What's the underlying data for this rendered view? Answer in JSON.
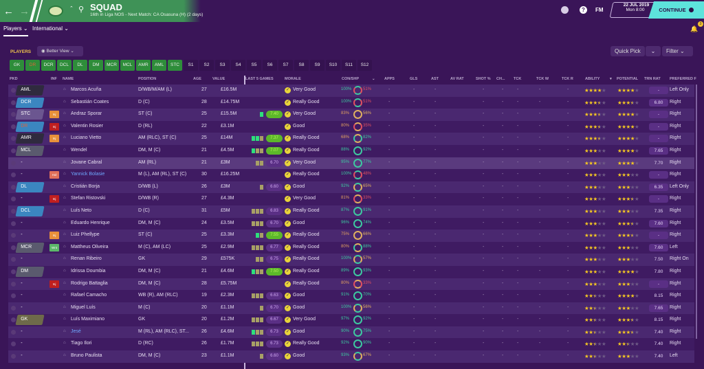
{
  "header": {
    "title": "SQUAD",
    "subtitle": "16th in Liga NOS - Next Match: CA Osasuna (H) (2 days)",
    "date": "22 JUL 2019",
    "time": "Mon 8:00",
    "continue": "CONTINUE",
    "fm": "FM",
    "help": "?",
    "notifications": "3"
  },
  "subnav": {
    "players": "Players ⌄",
    "international": "International ⌄"
  },
  "toolbar": {
    "players_label": "PLAYERS",
    "view": "Better View",
    "quick_pick": "Quick Pick",
    "filter": "Filter"
  },
  "position_buttons": [
    {
      "label": "GK",
      "on": true
    },
    {
      "label": "DR",
      "on": true,
      "alert": true
    },
    {
      "label": "DCR",
      "on": true
    },
    {
      "label": "DCL",
      "on": true
    },
    {
      "label": "DL",
      "on": true
    },
    {
      "label": "DM",
      "on": true
    },
    {
      "label": "MCR",
      "on": true
    },
    {
      "label": "MCL",
      "on": true
    },
    {
      "label": "AMR",
      "on": true
    },
    {
      "label": "AML",
      "on": true
    },
    {
      "label": "STC",
      "on": true
    },
    {
      "label": "S1"
    },
    {
      "label": "S2"
    },
    {
      "label": "S3"
    },
    {
      "label": "S4"
    },
    {
      "label": "S5"
    },
    {
      "label": "S6"
    },
    {
      "label": "S7"
    },
    {
      "label": "S8"
    },
    {
      "label": "S9"
    },
    {
      "label": "S10"
    },
    {
      "label": "S11"
    },
    {
      "label": "S12"
    }
  ],
  "columns": {
    "pkd": "PKD",
    "inf": "INF",
    "name": "NAME",
    "position": "POSITION",
    "age": "AGE",
    "value": "VALUE",
    "last5": "LAST 5 GAMES",
    "morale": "MORALE",
    "conshp": "CON/SHP",
    "apps": "APPS",
    "gls": "GLS",
    "ast": "AST",
    "avrat": "AV RAT",
    "shot": "SHOT %",
    "ch": "CH...",
    "tck": "TCK",
    "tckw": "TCK W",
    "tckr": "TCK R",
    "ability": "ABILITY",
    "potential": "POTENTIAL",
    "trn": "TRN RAT",
    "preferred": "PREFERRED F"
  },
  "colors": {
    "green": "#3f9257",
    "purple_bg": "#3a1558",
    "teal": "#5de3db",
    "star": "#f3c623"
  },
  "players": [
    {
      "pkd": "AML",
      "pkdc": "dark",
      "inf": "",
      "name": "Marcos Acuña",
      "pos": "D/WB/M/AM (L)",
      "age": "27",
      "value": "£16.5M",
      "form": [],
      "rating": "",
      "morale": "Very Good",
      "con": "100%",
      "shp": "51%",
      "ability": 4,
      "potential": 4,
      "trn": "-",
      "foot": "Left Only"
    },
    {
      "pkd": "DCR",
      "pkdc": "blue",
      "inf": "",
      "name": "Sebastián Coates",
      "pos": "D (C)",
      "age": "28",
      "value": "£14.75M",
      "form": [],
      "rating": "",
      "morale": "Really Good",
      "con": "100%",
      "shp": "51%",
      "ability": 3.5,
      "potential": 3.5,
      "trn": "6.80",
      "foot": "Right"
    },
    {
      "pkd": "STC",
      "pkdc": "purple",
      "inf": "Inj",
      "infc": "orange",
      "name": "Andraz Sporar",
      "pos": "ST (C)",
      "age": "25",
      "value": "£15.5M",
      "form": [
        "g"
      ],
      "rating": "7.40",
      "morale": "Very Good",
      "con": "83%",
      "shp": "56%",
      "ability": 3.5,
      "potential": 4,
      "trn": "-",
      "foot": "Right"
    },
    {
      "pkd": "DR",
      "pkdc": "blue",
      "pkdalert": true,
      "inf": "Inj",
      "infc": "red",
      "name": "Valentin Rosier",
      "pos": "D (RL)",
      "age": "22",
      "value": "£3.1M",
      "form": [],
      "rating": "",
      "morale": "Good",
      "con": "80%",
      "shp": "35%",
      "ability": 3.5,
      "potential": 4,
      "trn": "-",
      "foot": "Right"
    },
    {
      "pkd": "AMR",
      "pkdc": "dark",
      "inf": "Inj",
      "infc": "orange",
      "name": "Luciano Vietto",
      "pos": "AM (RLC), ST (C)",
      "age": "25",
      "value": "£14M",
      "form": [
        "g",
        "g",
        "y"
      ],
      "rating": "7.37",
      "morale": "Really Good",
      "con": "68%",
      "shp": "82%",
      "ability": 3.5,
      "potential": 4,
      "trn": "-",
      "foot": "Right"
    },
    {
      "pkd": "MCL",
      "pkdc": "gray",
      "inf": "",
      "name": "Wendel",
      "pos": "DM, M (C)",
      "age": "21",
      "value": "£4.5M",
      "form": [
        "g",
        "y",
        "y"
      ],
      "rating": "7.07",
      "morale": "Really Good",
      "con": "88%",
      "shp": "92%",
      "ability": 3,
      "potential": 4,
      "trn": "7.65",
      "foot": "Right"
    },
    {
      "pkd": "-",
      "pkdc": "",
      "inf": "",
      "name": "Jovane Cabral",
      "pos": "AM (RL)",
      "age": "21",
      "value": "£3M",
      "form": [
        "y",
        "y"
      ],
      "rating": "6.70",
      "morale": "Very Good",
      "con": "95%",
      "shp": "77%",
      "ability": 3,
      "potential": 4,
      "trn": "7.70",
      "foot": "Right",
      "highlight": true
    },
    {
      "pkd": "-",
      "pkdc": "",
      "inf": "Hol",
      "infc": "salmon",
      "name": "Yannick Bolasie",
      "link": true,
      "pos": "M (L), AM (RL), ST (C)",
      "age": "30",
      "value": "£16.25M",
      "form": [],
      "rating": "",
      "morale": "Really Good",
      "con": "100%",
      "shp": "48%",
      "ability": 3,
      "potential": 3,
      "trn": "-",
      "foot": "Right"
    },
    {
      "pkd": "DL",
      "pkdc": "blue",
      "inf": "",
      "name": "Cristián Borja",
      "pos": "D/WB (L)",
      "age": "26",
      "value": "£3M",
      "form": [
        "y"
      ],
      "rating": "6.60",
      "morale": "Good",
      "con": "92%",
      "shp": "65%",
      "ability": 3,
      "potential": 3,
      "trn": "6.35",
      "foot": "Left Only"
    },
    {
      "pkd": "-",
      "pkdc": "",
      "inf": "Inj",
      "infc": "red",
      "name": "Stefan Ristovski",
      "pos": "D/WB (R)",
      "age": "27",
      "value": "£4.3M",
      "form": [],
      "rating": "",
      "morale": "Very Good",
      "con": "81%",
      "shp": "33%",
      "ability": 3,
      "potential": 3.5,
      "trn": "-",
      "foot": "Right"
    },
    {
      "pkd": "DCL",
      "pkdc": "blue",
      "inf": "",
      "name": "Luís Neto",
      "pos": "D (C)",
      "age": "31",
      "value": "£5M",
      "form": [
        "y",
        "y",
        "y"
      ],
      "rating": "6.83",
      "morale": "Really Good",
      "con": "87%",
      "shp": "91%",
      "ability": 3,
      "potential": 3,
      "trn": "7.35",
      "foot": "Right"
    },
    {
      "pkd": "-",
      "pkdc": "",
      "inf": "",
      "name": "Eduardo Henrique",
      "pos": "DM, M (C)",
      "age": "24",
      "value": "£3.5M",
      "form": [
        "y",
        "y",
        "y"
      ],
      "rating": "6.70",
      "morale": "Good",
      "con": "96%",
      "shp": "74%",
      "ability": 3,
      "potential": 3.5,
      "trn": "7.60",
      "foot": "Right"
    },
    {
      "pkd": "-",
      "pkdc": "",
      "inf": "Inj",
      "infc": "orange",
      "name": "Luiz Phellype",
      "pos": "ST (C)",
      "age": "25",
      "value": "£3.3M",
      "form": [
        "g",
        "y"
      ],
      "rating": "7.55",
      "morale": "Really Good",
      "con": "75%",
      "shp": "66%",
      "ability": 3,
      "potential": 3.5,
      "trn": "-",
      "foot": "Right"
    },
    {
      "pkd": "MCR",
      "pkdc": "gray",
      "inf": "Wnt",
      "infc": "green",
      "name": "Mattheus Oliveira",
      "pos": "M (C), AM (LC)",
      "age": "25",
      "value": "£2.9M",
      "form": [
        "y",
        "y",
        "y"
      ],
      "rating": "6.77",
      "morale": "Really Good",
      "con": "80%",
      "shp": "88%",
      "ability": 3,
      "potential": 3,
      "trn": "7.60",
      "foot": "Left"
    },
    {
      "pkd": "-",
      "pkdc": "",
      "inf": "",
      "name": "Renan Ribeiro",
      "pos": "GK",
      "age": "29",
      "value": "£575K",
      "form": [
        "y",
        "y"
      ],
      "rating": "6.75",
      "morale": "Really Good",
      "con": "100%",
      "shp": "57%",
      "ability": 3,
      "potential": 3,
      "trn": "7.50",
      "foot": "Right On"
    },
    {
      "pkd": "DM",
      "pkdc": "gray",
      "inf": "",
      "name": "Idrissa Doumbia",
      "pos": "DM, M (C)",
      "age": "21",
      "value": "£4.6M",
      "form": [
        "g",
        "y",
        "y"
      ],
      "rating": "7.50",
      "morale": "Really Good",
      "con": "89%",
      "shp": "93%",
      "ability": 3,
      "potential": 4,
      "trn": "7.80",
      "foot": "Right"
    },
    {
      "pkd": "-",
      "pkdc": "",
      "inf": "Inj",
      "infc": "red",
      "name": "Rodrigo Battaglia",
      "pos": "DM, M (C)",
      "age": "28",
      "value": "£5.75M",
      "form": [],
      "rating": "",
      "morale": "Really Good",
      "con": "80%",
      "shp": "33%",
      "ability": 3,
      "potential": 3,
      "trn": "-",
      "foot": "Right"
    },
    {
      "pkd": "-",
      "pkdc": "",
      "inf": "",
      "name": "Rafael Camacho",
      "pos": "WB (R), AM (RLC)",
      "age": "19",
      "value": "£2.3M",
      "form": [
        "y",
        "y",
        "y"
      ],
      "rating": "6.63",
      "morale": "Good",
      "con": "91%",
      "shp": "70%",
      "ability": 2.5,
      "potential": 4,
      "trn": "8.15",
      "foot": "Right"
    },
    {
      "pkd": "-",
      "pkdc": "",
      "inf": "",
      "name": "Miguel Luís",
      "pos": "M (C)",
      "age": "20",
      "value": "£1.1M",
      "form": [
        "y"
      ],
      "rating": "6.70",
      "morale": "Good",
      "con": "100%",
      "shp": "56%",
      "ability": 2.5,
      "potential": 3,
      "trn": "7.65",
      "foot": "Right"
    },
    {
      "pkd": "GK",
      "pkdc": "olive",
      "inf": "",
      "name": "Luís Maximiano",
      "pos": "GK",
      "age": "20",
      "value": "£1.2M",
      "form": [
        "y",
        "y",
        "y"
      ],
      "rating": "6.67",
      "morale": "Very Good",
      "con": "97%",
      "shp": "92%",
      "ability": 2.5,
      "potential": 3.5,
      "trn": "8.15",
      "foot": "Right"
    },
    {
      "pkd": "-",
      "pkdc": "",
      "inf": "",
      "name": "Jesé",
      "link": true,
      "pos": "M (RL), AM (RLC), ST...",
      "age": "26",
      "value": "£4.6M",
      "form": [
        "g",
        "y",
        "y"
      ],
      "rating": "6.73",
      "morale": "Good",
      "con": "90%",
      "shp": "75%",
      "ability": 2.5,
      "potential": 3.5,
      "trn": "7.40",
      "foot": "Right"
    },
    {
      "pkd": "-",
      "pkdc": "",
      "inf": "",
      "name": "Tiago Ilori",
      "pos": "D (RC)",
      "age": "26",
      "value": "£1.7M",
      "form": [
        "y",
        "y",
        "y"
      ],
      "rating": "6.73",
      "morale": "Really Good",
      "con": "92%",
      "shp": "90%",
      "ability": 2.5,
      "potential": 2.5,
      "trn": "7.40",
      "foot": "Right"
    },
    {
      "pkd": "-",
      "pkdc": "",
      "inf": "",
      "name": "Bruno Paulista",
      "pos": "DM, M (C)",
      "age": "23",
      "value": "£1.1M",
      "form": [
        "y"
      ],
      "rating": "6.60",
      "morale": "Good",
      "con": "93%",
      "shp": "67%",
      "ability": 2.5,
      "potential": 3,
      "trn": "7.40",
      "foot": "Left"
    }
  ]
}
